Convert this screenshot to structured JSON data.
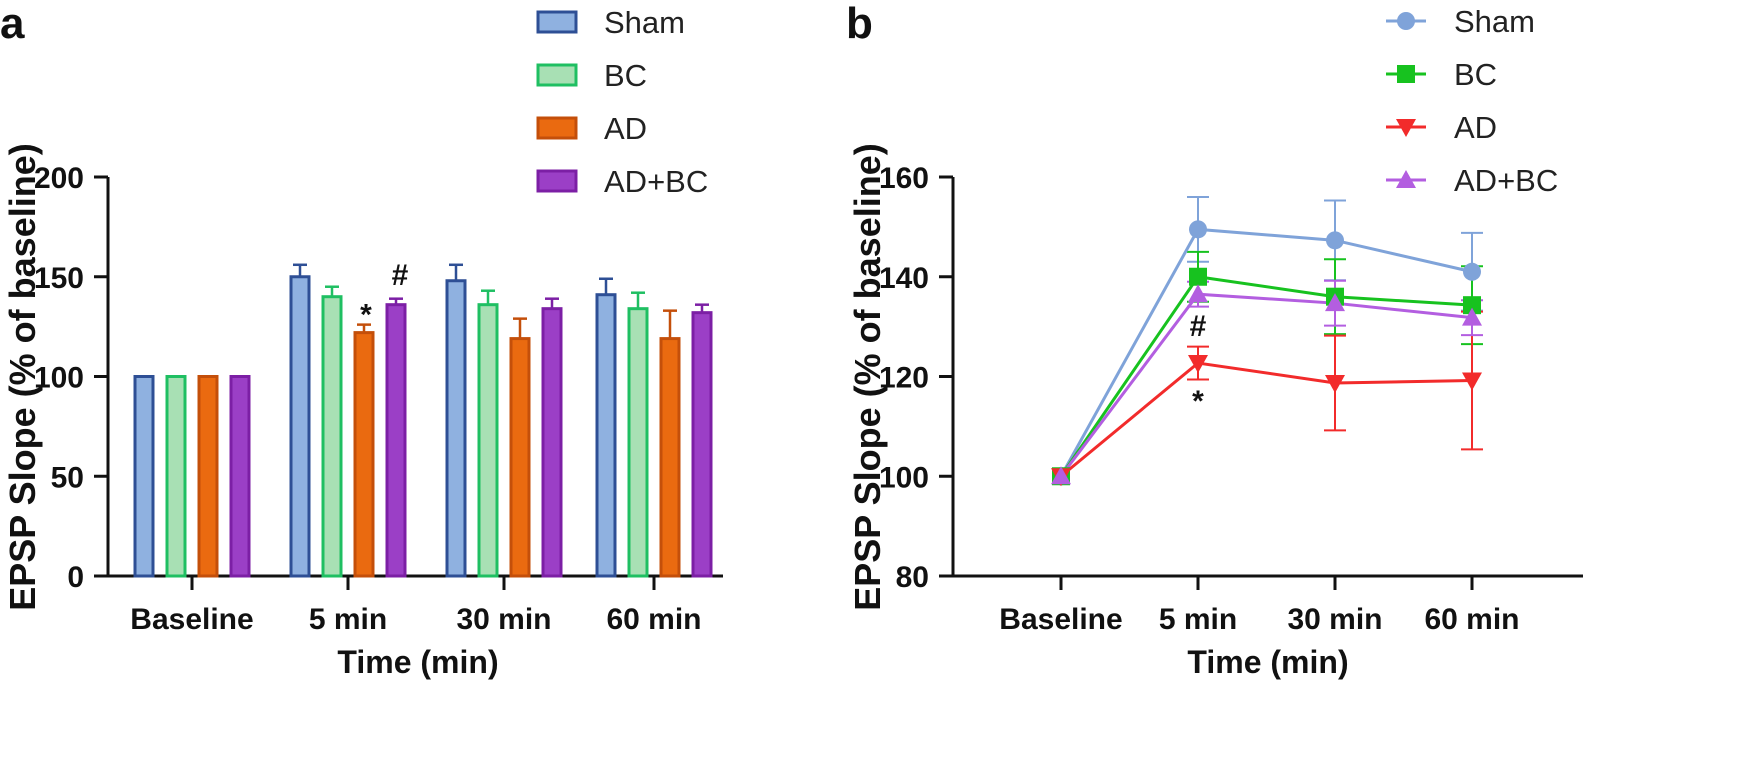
{
  "chart_data": [
    {
      "panel_label": "a",
      "type": "bar",
      "title": "",
      "xlabel": "Time (min)",
      "ylabel": "EPSP Slope (% of baseline)",
      "ylim": [
        0,
        200
      ],
      "yticks": [
        "0",
        "50",
        "100",
        "150",
        "200"
      ],
      "categories": [
        "Baseline",
        "5 min",
        "30 min",
        "60 min"
      ],
      "series": [
        {
          "name": "Sham",
          "fill": "#8fb1e0",
          "edge": "#2e4f95",
          "values": [
            100,
            150,
            148,
            141
          ],
          "errors": [
            0,
            6,
            8,
            8
          ]
        },
        {
          "name": "BC",
          "fill": "#a8e0b4",
          "edge": "#1fbf62",
          "values": [
            100,
            140,
            136,
            134
          ],
          "errors": [
            0,
            5,
            7,
            8
          ]
        },
        {
          "name": "AD",
          "fill": "#ea6a10",
          "edge": "#c44f0a",
          "values": [
            100,
            122,
            119,
            119
          ],
          "errors": [
            0,
            4,
            10,
            14
          ]
        },
        {
          "name": "AD+BC",
          "fill": "#9b3fc6",
          "edge": "#7c1fa5",
          "values": [
            100,
            136,
            134,
            132
          ],
          "errors": [
            0,
            3,
            5,
            4
          ]
        }
      ],
      "annotations": [
        {
          "text": "*",
          "category": "5 min",
          "series": "AD",
          "value": 137
        },
        {
          "text": "#",
          "category": "5 min",
          "series": "AD+BC",
          "value": 151
        }
      ],
      "legend_position": "top-right"
    },
    {
      "panel_label": "b",
      "type": "line",
      "title": "",
      "xlabel": "Time (min)",
      "ylabel": "EPSP Slope (% of baseline)",
      "ylim": [
        80,
        160
      ],
      "yticks": [
        "80",
        "100",
        "120",
        "140",
        "160"
      ],
      "categories": [
        "Baseline",
        "5 min",
        "30 min",
        "60 min"
      ],
      "series": [
        {
          "name": "Sham",
          "color": "#7fa3d9",
          "marker": "circle",
          "values": [
            100,
            149.5,
            147.3,
            141
          ],
          "errors": [
            0,
            6.5,
            8,
            7.8
          ]
        },
        {
          "name": "BC",
          "color": "#17c21f",
          "marker": "square",
          "values": [
            100,
            140,
            136,
            134.3
          ],
          "errors": [
            0,
            5,
            7.5,
            7.8
          ]
        },
        {
          "name": "AD",
          "color": "#f22b2b",
          "marker": "triangle-down",
          "values": [
            100,
            122.7,
            118.7,
            119.2
          ],
          "errors": [
            0,
            3.3,
            9.5,
            13.8
          ]
        },
        {
          "name": "AD+BC",
          "color": "#b35ee0",
          "marker": "triangle-up",
          "values": [
            100,
            136.5,
            134.7,
            131.8
          ],
          "errors": [
            0,
            2.5,
            4.5,
            3.5
          ]
        }
      ],
      "annotations": [
        {
          "text": "#",
          "category": "5 min",
          "value": 130.5
        },
        {
          "text": "*",
          "category": "5 min",
          "value": 115.5
        }
      ],
      "legend_position": "top-right"
    }
  ]
}
